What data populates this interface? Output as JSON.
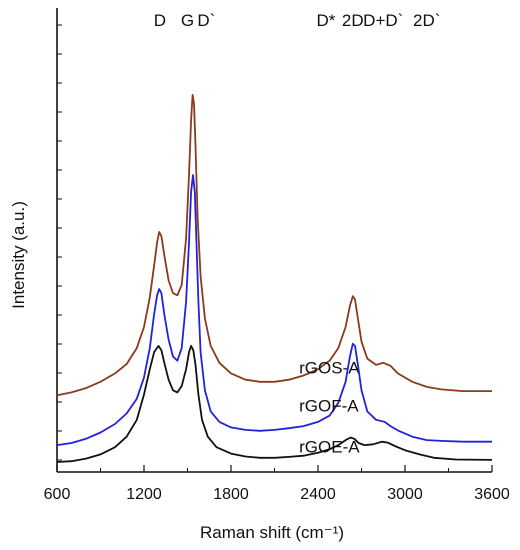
{
  "chart_data": {
    "type": "line",
    "title": "",
    "xlabel": "Raman shift (cm⁻¹)",
    "ylabel": "Intensity (a.u.)",
    "xlim": [
      600,
      3600
    ],
    "ylim": [
      0,
      1
    ],
    "xticks": [
      600,
      1200,
      1800,
      2400,
      3000,
      3600
    ],
    "yticks_labeled": false,
    "grid": false,
    "legend": "none",
    "peak_labels": [
      {
        "text": "D",
        "x": 1310
      },
      {
        "text": "G",
        "x": 1500
      },
      {
        "text": "D`",
        "x": 1630
      },
      {
        "text": "D*",
        "x": 2455
      },
      {
        "text": "2D",
        "x": 2640
      },
      {
        "text": "D+D`",
        "x": 2850
      },
      {
        "text": "2D`",
        "x": 3150
      }
    ],
    "series": [
      {
        "name": "rGOS-A",
        "color": "#8B3A1E",
        "label_at": [
          2270,
          0.21
        ],
        "points": [
          [
            600,
            0.158
          ],
          [
            700,
            0.165
          ],
          [
            800,
            0.175
          ],
          [
            900,
            0.19
          ],
          [
            1000,
            0.21
          ],
          [
            1080,
            0.232
          ],
          [
            1150,
            0.27
          ],
          [
            1200,
            0.32
          ],
          [
            1240,
            0.39
          ],
          [
            1270,
            0.465
          ],
          [
            1290,
            0.52
          ],
          [
            1305,
            0.545
          ],
          [
            1320,
            0.535
          ],
          [
            1340,
            0.49
          ],
          [
            1370,
            0.43
          ],
          [
            1400,
            0.4
          ],
          [
            1430,
            0.395
          ],
          [
            1460,
            0.42
          ],
          [
            1490,
            0.53
          ],
          [
            1510,
            0.68
          ],
          [
            1525,
            0.81
          ],
          [
            1535,
            0.87
          ],
          [
            1545,
            0.85
          ],
          [
            1555,
            0.75
          ],
          [
            1570,
            0.58
          ],
          [
            1590,
            0.44
          ],
          [
            1620,
            0.34
          ],
          [
            1660,
            0.275
          ],
          [
            1720,
            0.235
          ],
          [
            1800,
            0.21
          ],
          [
            1900,
            0.195
          ],
          [
            2000,
            0.19
          ],
          [
            2100,
            0.19
          ],
          [
            2200,
            0.195
          ],
          [
            2300,
            0.205
          ],
          [
            2400,
            0.22
          ],
          [
            2480,
            0.24
          ],
          [
            2540,
            0.27
          ],
          [
            2590,
            0.32
          ],
          [
            2620,
            0.37
          ],
          [
            2640,
            0.393
          ],
          [
            2655,
            0.385
          ],
          [
            2675,
            0.34
          ],
          [
            2700,
            0.285
          ],
          [
            2740,
            0.245
          ],
          [
            2800,
            0.23
          ],
          [
            2850,
            0.235
          ],
          [
            2900,
            0.228
          ],
          [
            2950,
            0.21
          ],
          [
            3050,
            0.19
          ],
          [
            3150,
            0.178
          ],
          [
            3250,
            0.172
          ],
          [
            3400,
            0.168
          ],
          [
            3600,
            0.168
          ]
        ]
      },
      {
        "name": "rGOF-A",
        "color": "#2222DD",
        "label_at": [
          2270,
          0.12
        ],
        "points": [
          [
            600,
            0.04
          ],
          [
            700,
            0.045
          ],
          [
            800,
            0.055
          ],
          [
            900,
            0.07
          ],
          [
            1000,
            0.09
          ],
          [
            1080,
            0.115
          ],
          [
            1150,
            0.15
          ],
          [
            1200,
            0.2
          ],
          [
            1240,
            0.27
          ],
          [
            1270,
            0.35
          ],
          [
            1290,
            0.395
          ],
          [
            1305,
            0.41
          ],
          [
            1320,
            0.4
          ],
          [
            1340,
            0.35
          ],
          [
            1370,
            0.29
          ],
          [
            1400,
            0.25
          ],
          [
            1430,
            0.24
          ],
          [
            1460,
            0.27
          ],
          [
            1490,
            0.38
          ],
          [
            1510,
            0.52
          ],
          [
            1525,
            0.64
          ],
          [
            1538,
            0.68
          ],
          [
            1550,
            0.64
          ],
          [
            1560,
            0.54
          ],
          [
            1575,
            0.38
          ],
          [
            1590,
            0.26
          ],
          [
            1620,
            0.17
          ],
          [
            1660,
            0.12
          ],
          [
            1720,
            0.095
          ],
          [
            1800,
            0.082
          ],
          [
            1900,
            0.076
          ],
          [
            2000,
            0.074
          ],
          [
            2100,
            0.076
          ],
          [
            2200,
            0.08
          ],
          [
            2300,
            0.085
          ],
          [
            2400,
            0.095
          ],
          [
            2480,
            0.11
          ],
          [
            2540,
            0.14
          ],
          [
            2590,
            0.19
          ],
          [
            2620,
            0.25
          ],
          [
            2640,
            0.28
          ],
          [
            2655,
            0.275
          ],
          [
            2675,
            0.23
          ],
          [
            2700,
            0.17
          ],
          [
            2740,
            0.12
          ],
          [
            2800,
            0.1
          ],
          [
            2860,
            0.095
          ],
          [
            2900,
            0.085
          ],
          [
            2950,
            0.075
          ],
          [
            3050,
            0.06
          ],
          [
            3150,
            0.052
          ],
          [
            3250,
            0.05
          ],
          [
            3400,
            0.048
          ],
          [
            3600,
            0.048
          ]
        ]
      },
      {
        "name": "rGOE-A",
        "color": "#111111",
        "label_at": [
          2270,
          0.022
        ],
        "points": [
          [
            600,
            0.0
          ],
          [
            700,
            0.002
          ],
          [
            800,
            0.008
          ],
          [
            900,
            0.018
          ],
          [
            1000,
            0.035
          ],
          [
            1080,
            0.06
          ],
          [
            1150,
            0.1
          ],
          [
            1200,
            0.16
          ],
          [
            1240,
            0.22
          ],
          [
            1270,
            0.26
          ],
          [
            1300,
            0.275
          ],
          [
            1320,
            0.265
          ],
          [
            1340,
            0.235
          ],
          [
            1370,
            0.195
          ],
          [
            1400,
            0.17
          ],
          [
            1430,
            0.165
          ],
          [
            1460,
            0.18
          ],
          [
            1490,
            0.22
          ],
          [
            1510,
            0.26
          ],
          [
            1525,
            0.275
          ],
          [
            1540,
            0.265
          ],
          [
            1555,
            0.23
          ],
          [
            1575,
            0.16
          ],
          [
            1600,
            0.1
          ],
          [
            1640,
            0.06
          ],
          [
            1700,
            0.035
          ],
          [
            1800,
            0.02
          ],
          [
            1900,
            0.013
          ],
          [
            2000,
            0.01
          ],
          [
            2100,
            0.01
          ],
          [
            2200,
            0.012
          ],
          [
            2300,
            0.015
          ],
          [
            2400,
            0.022
          ],
          [
            2480,
            0.03
          ],
          [
            2540,
            0.04
          ],
          [
            2590,
            0.052
          ],
          [
            2625,
            0.058
          ],
          [
            2650,
            0.055
          ],
          [
            2680,
            0.045
          ],
          [
            2720,
            0.04
          ],
          [
            2780,
            0.042
          ],
          [
            2840,
            0.048
          ],
          [
            2880,
            0.046
          ],
          [
            2930,
            0.038
          ],
          [
            3000,
            0.028
          ],
          [
            3100,
            0.018
          ],
          [
            3200,
            0.01
          ],
          [
            3350,
            0.006
          ],
          [
            3600,
            0.005
          ]
        ]
      }
    ]
  }
}
